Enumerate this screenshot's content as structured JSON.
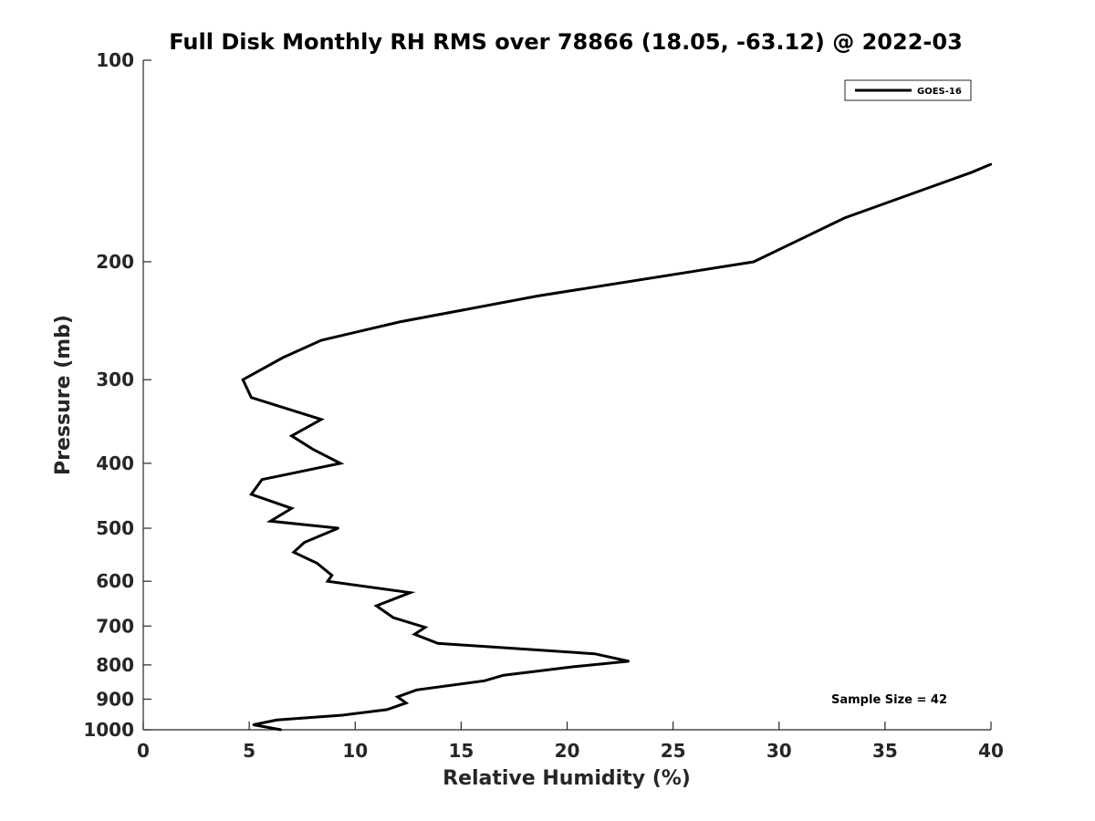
{
  "chart_data": {
    "type": "line",
    "title": "Full Disk Monthly RH RMS over 78866 (18.05, -63.12) @ 2022-03",
    "xlabel": "Relative Humidity (%)",
    "ylabel": "Pressure (mb)",
    "xlim": [
      0,
      40
    ],
    "ylim": [
      100,
      1000
    ],
    "y_scale": "log",
    "y_reversed": true,
    "x_ticks": [
      0,
      5,
      10,
      15,
      20,
      25,
      30,
      35,
      40
    ],
    "y_ticks": [
      100,
      200,
      300,
      400,
      500,
      600,
      700,
      800,
      900,
      1000
    ],
    "grid": false,
    "legend_position": "top-right",
    "annotation": "Sample Size = 42",
    "series": [
      {
        "name": "GOES-16",
        "color": "#000000",
        "points": [
          [
            40.0,
            143
          ],
          [
            39.1,
            147
          ],
          [
            33.1,
            172
          ],
          [
            28.8,
            200
          ],
          [
            18.6,
            225
          ],
          [
            12.1,
            246
          ],
          [
            8.4,
            262
          ],
          [
            6.6,
            278
          ],
          [
            4.7,
            300
          ],
          [
            5.1,
            319
          ],
          [
            8.4,
            344
          ],
          [
            7.0,
            364
          ],
          [
            8.0,
            381
          ],
          [
            9.3,
            400
          ],
          [
            5.6,
            423
          ],
          [
            5.1,
            445
          ],
          [
            7.0,
            467
          ],
          [
            6.0,
            488
          ],
          [
            9.2,
            500
          ],
          [
            7.6,
            525
          ],
          [
            7.1,
            543
          ],
          [
            8.2,
            564
          ],
          [
            8.9,
            588
          ],
          [
            8.7,
            600
          ],
          [
            12.6,
            624
          ],
          [
            11.0,
            653
          ],
          [
            11.8,
            680
          ],
          [
            13.3,
            703
          ],
          [
            12.8,
            720
          ],
          [
            13.9,
            743
          ],
          [
            21.3,
            770
          ],
          [
            22.9,
            790
          ],
          [
            20.3,
            805
          ],
          [
            17.0,
            829
          ],
          [
            16.1,
            845
          ],
          [
            12.9,
            872
          ],
          [
            12.0,
            893
          ],
          [
            12.4,
            912
          ],
          [
            11.5,
            933
          ],
          [
            9.4,
            951
          ],
          [
            6.3,
            967
          ],
          [
            5.2,
            983
          ],
          [
            6.5,
            1000
          ]
        ]
      }
    ]
  }
}
